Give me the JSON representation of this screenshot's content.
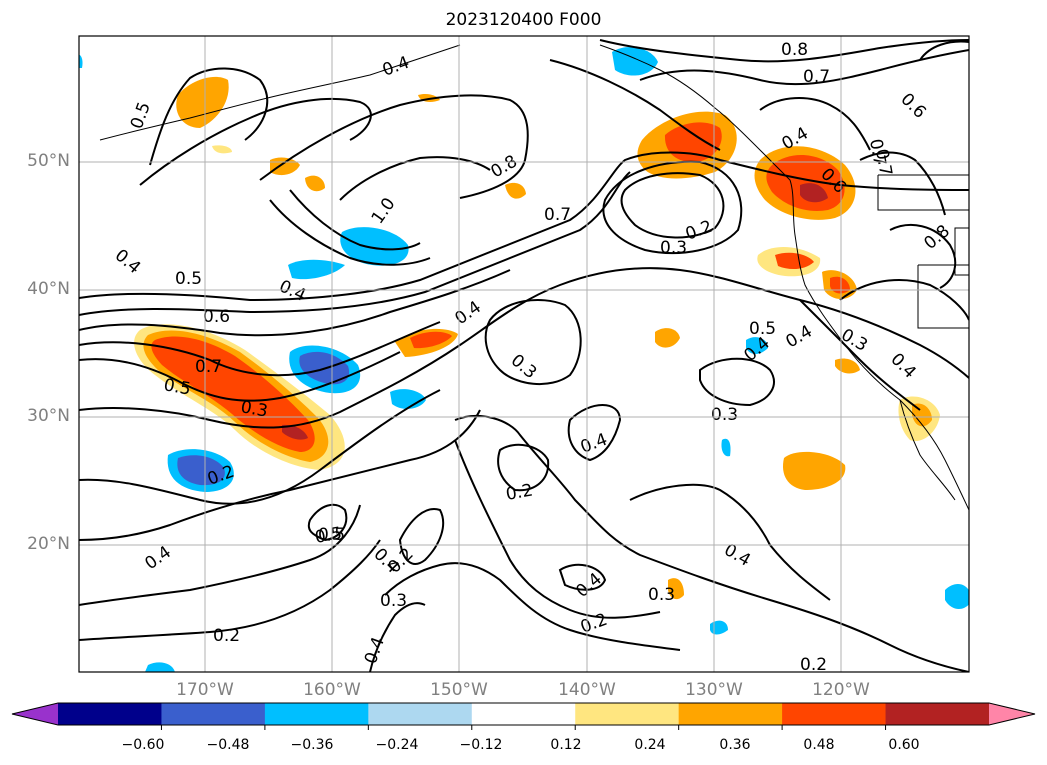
{
  "title": "2023120400 F000",
  "latitude_labels": [
    "50°N",
    "40°N",
    "30°N",
    "20°N"
  ],
  "longitude_labels": [
    "170°W",
    "160°W",
    "150°W",
    "140°W",
    "130°W",
    "120°W"
  ],
  "colorbar": {
    "ticks": [
      "−0.60",
      "−0.48",
      "−0.36",
      "−0.24",
      "−0.12",
      "0.12",
      "0.24",
      "0.36",
      "0.48",
      "0.60"
    ],
    "colors": [
      "#9932cc",
      "#00008b",
      "#3a5fcd",
      "#00bfff",
      "#add8f0",
      "#ffffff",
      "#ffe680",
      "#ffa500",
      "#ff4500",
      "#b22222",
      "#ff85a8"
    ]
  },
  "contour_labels": [
    "0.8",
    "0.7",
    "0.5",
    "0.6",
    "0.4",
    "0.8",
    "0.4",
    "0.7",
    "0.4",
    "0.4",
    "0.7",
    "0.6",
    "0.8",
    "1.0",
    "0.7",
    "0.3",
    "0.2",
    "0.4",
    "0.5",
    "0.4",
    "0.5",
    "0.6",
    "0.4",
    "0.3",
    "0.5",
    "0.3",
    "0.3",
    "0.4",
    "0.7",
    "0.5",
    "0.3",
    "0.2",
    "0.4",
    "0.2",
    "0.4",
    "0.5",
    "0.4",
    "0.2",
    "0.3",
    "0.4",
    "0.3",
    "0.2",
    "0.2",
    "0.4",
    "0.2",
    "0.4"
  ]
}
